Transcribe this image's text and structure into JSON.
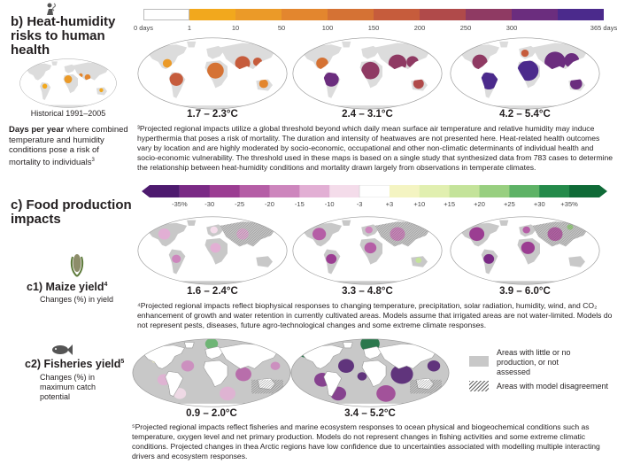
{
  "heat": {
    "title": "b) Heat-humidity risks to human health",
    "scale_labels": [
      "0 days",
      "1",
      "10",
      "50",
      "100",
      "150",
      "200",
      "250",
      "300",
      "365 days"
    ],
    "scale_colors": [
      "#ffffff",
      "#f2a81d",
      "#eb9a28",
      "#e3862e",
      "#d57234",
      "#c65c3c",
      "#b04a4a",
      "#8f3a63",
      "#6b2d7e",
      "#4b2a8c"
    ],
    "historical_caption": "Historical 1991–2005",
    "ranges": [
      "1.7 – 2.3°C",
      "2.4 – 3.1°C",
      "4.2 – 5.4°C"
    ],
    "description_bold": "Days per year",
    "description_rest": " where combined temperature and humidity conditions pose a risk of mortality to individuals",
    "description_sup": "3",
    "note": "³Projected regional impacts utilize a global threshold beyond which daily mean surface air temperature and relative humidity may induce hyperthermia that poses a risk of mortality. The duration and intensity of heatwaves are not presented here. Heat-related health outcomes vary by location and are highly moderated by socio-economic, occupational and other non-climatic determinants of individual health and socio-economic vulnerability. The threshold used in these maps is based on a single study that synthesized data from 783 cases to determine the relationship between heat-humidity conditions and mortality drawn largely from observations in temperate climates."
  },
  "food": {
    "title": "c) Food production impacts",
    "scale_labels": [
      "-35%",
      "-30",
      "-25",
      "-20",
      "-15",
      "-10",
      "-3",
      "+3",
      "+10",
      "+15",
      "+20",
      "+25",
      "+30",
      "+35%"
    ],
    "scale_colors": [
      "#4d1a6e",
      "#7a2a85",
      "#9b3d92",
      "#b55ea6",
      "#cd86bd",
      "#e2afd4",
      "#f4dcea",
      "#ffffff",
      "#f4f4c2",
      "#e1efb0",
      "#c4e39a",
      "#98cf80",
      "#5eb266",
      "#248a4a",
      "#0f6a37"
    ],
    "maize": {
      "title": "c1) Maize yield",
      "title_sup": "4",
      "subtitle": "Changes (%) in yield",
      "ranges": [
        "1.6 – 2.4°C",
        "3.3 – 4.8°C",
        "3.9 – 6.0°C"
      ],
      "note": "⁴Projected regional impacts reflect biophysical responses to changing temperature, precipitation, solar radiation, humidity, wind, and CO₂ enhancement of growth and water retention in currently cultivated areas. Models assume that irrigated areas are not water-limited. Models do not represent pests, diseases, future agro-technological changes and some extreme climate responses."
    },
    "fisheries": {
      "title": "c2) Fisheries yield",
      "title_sup": "5",
      "subtitle": "Changes (%) in maximum catch potential",
      "ranges": [
        "0.9 – 2.0°C",
        "3.4 – 5.2°C"
      ],
      "note": "⁵Projected regional impacts reflect fisheries and marine ecosystem responses to ocean physical and biogeochemical conditions such as temperature, oxygen level and net primary production. Models do not represent changes in fishing activities and some extreme climatic conditions. Projected changes in thea Arctic regions have low confidence due to uncertainties associated with modelling multiple interacting drivers and ecosystem responses."
    }
  },
  "legend": {
    "gray_label": "Areas with little or no production, or not assessed",
    "hatch_label": "Areas with model disagreement"
  },
  "colors": {
    "land_gray": "#c8c8c8",
    "ocean": "#ffffff",
    "outline": "#9a9a9a"
  }
}
